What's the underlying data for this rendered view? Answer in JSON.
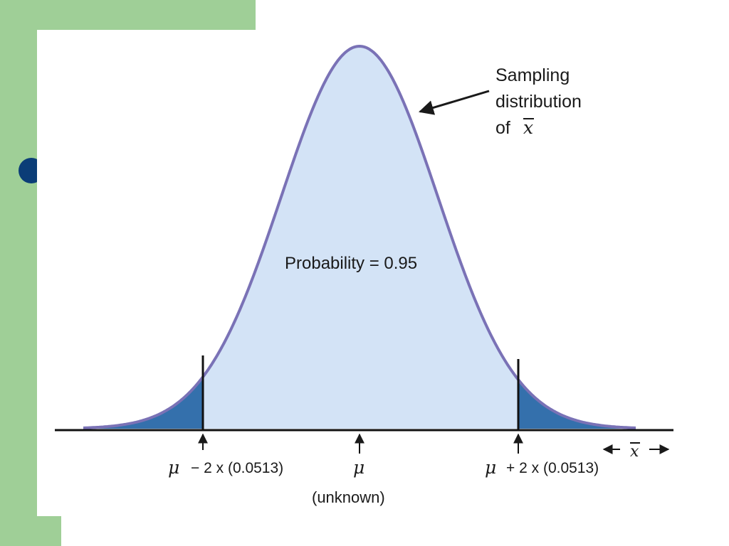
{
  "theme": {
    "accent_green": "#9fcf97",
    "bullet_blue": "#0b3d77",
    "curve_fill": "#d3e3f6",
    "tail_fill": "#3470ac",
    "curve_stroke": "#7a72b6"
  },
  "curve_label": {
    "line1": "Sampling",
    "line2": "distribution",
    "line3_prefix": "of",
    "line3_symbol": "x"
  },
  "probability_label": "Probability = 0.95",
  "markers": {
    "left": {
      "symbol": "μ",
      "text": "− 2 x (0.0513)"
    },
    "center": {
      "symbol": "μ",
      "note": "(unknown)"
    },
    "right": {
      "symbol": "μ",
      "text": "+ 2 x (0.0513)"
    }
  },
  "axis_label": {
    "symbol": "x"
  }
}
